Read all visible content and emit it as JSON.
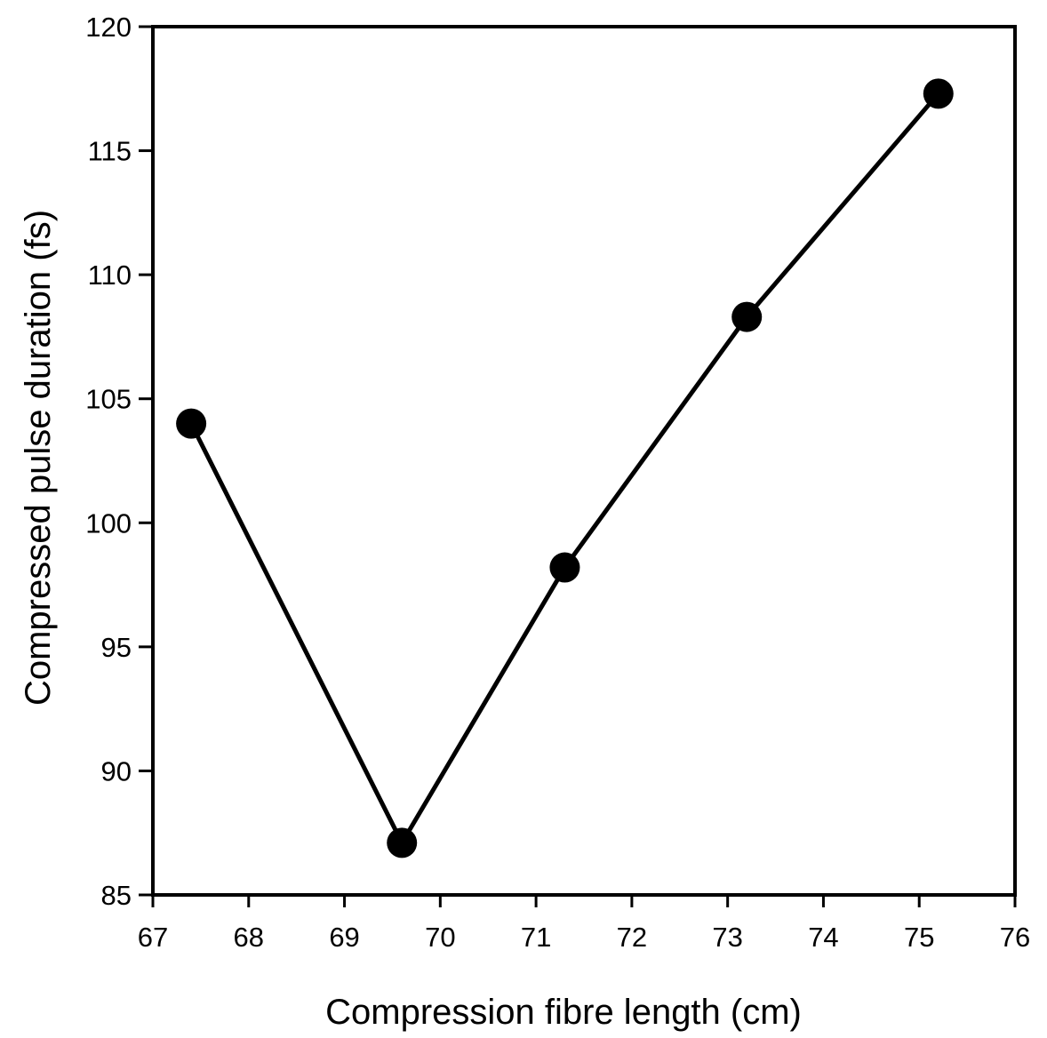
{
  "chart_data": {
    "type": "line",
    "title": "",
    "xlabel": "Compression fibre length (cm)",
    "ylabel": "Compressed pulse duration (fs)",
    "xlim": [
      67,
      76
    ],
    "ylim": [
      85,
      120
    ],
    "x_ticks": [
      67,
      68,
      69,
      70,
      71,
      72,
      73,
      74,
      75,
      76
    ],
    "y_ticks": [
      85,
      90,
      95,
      100,
      105,
      110,
      115,
      120
    ],
    "grid": false,
    "legend": "none",
    "marker": "filled-circle",
    "line_color": "#000000",
    "series": [
      {
        "x": [
          67.4,
          69.6,
          71.3,
          73.2,
          75.2
        ],
        "y": [
          104.0,
          87.1,
          98.2,
          108.3,
          117.3
        ]
      }
    ]
  }
}
